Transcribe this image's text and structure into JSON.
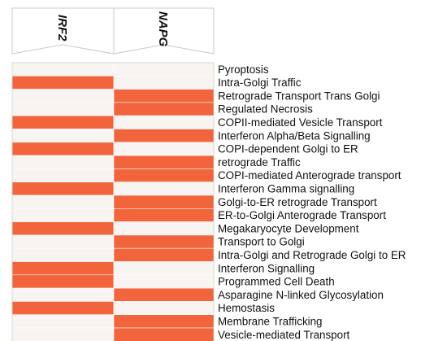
{
  "chart_data": {
    "type": "heatmap",
    "columns": [
      "IRF2",
      "NAPG"
    ],
    "rows": [
      "Pyroptosis",
      "Intra-Golgi Traffic",
      "Retrograde Transport Trans Golgi",
      "Regulated  Necrosis",
      "COPII-mediated Vesicle Transport",
      "Interferon Alpha/Beta Signalling",
      "COPI-dependent Golgi to ER",
      "retrograde Traffic",
      "COPI-mediated Anterograde transport",
      "Interferon Gamma signalling",
      "Golgi-to-ER retrograde Transport",
      "ER-to-Golgi Anterograde Transport",
      "Megakaryocyte Development",
      "Transport to Golgi",
      "Intra-Golgi and Retrograde Golgi to ER",
      "Interferon Signalling",
      "Programmed Cell Death",
      "Asparagine N-linked Glycosylation",
      "Hemostasis",
      "Membrane Trafficking",
      "Vesicle-mediated Transport"
    ],
    "values": [
      [
        0,
        0
      ],
      [
        1,
        0
      ],
      [
        0,
        1
      ],
      [
        0,
        1
      ],
      [
        1,
        0
      ],
      [
        0,
        1
      ],
      [
        1,
        0
      ],
      [
        0,
        1
      ],
      [
        0,
        1
      ],
      [
        1,
        0
      ],
      [
        0,
        1
      ],
      [
        0,
        1
      ],
      [
        1,
        0
      ],
      [
        0,
        1
      ],
      [
        0,
        1
      ],
      [
        1,
        0
      ],
      [
        1,
        0
      ],
      [
        0,
        1
      ],
      [
        1,
        0
      ],
      [
        0,
        1
      ],
      [
        0,
        1
      ]
    ],
    "colors": {
      "high": "#f2643c",
      "low": "#f7f4f2",
      "edge": "#c0c0c0",
      "accent": "#ffd6ec",
      "olive": "#b07a3a"
    }
  }
}
